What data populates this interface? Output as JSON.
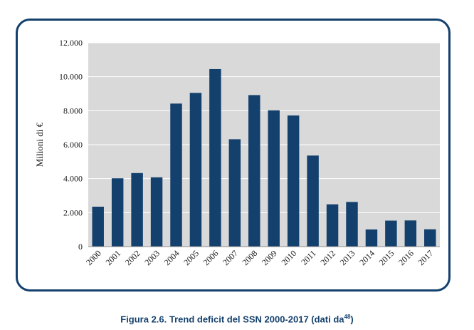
{
  "chart_data": {
    "type": "bar",
    "categories": [
      "2000",
      "2001",
      "2002",
      "2003",
      "2004",
      "2005",
      "2006",
      "2007",
      "2008",
      "2009",
      "2010",
      "2011",
      "2012",
      "2013",
      "2014",
      "2015",
      "2016",
      "2017"
    ],
    "values": [
      2350,
      4020,
      4330,
      4080,
      8420,
      9050,
      10450,
      6320,
      8920,
      8020,
      7720,
      5360,
      2490,
      2630,
      1010,
      1530,
      1540,
      1020
    ],
    "ylabel": "Milioni di €",
    "ylim": [
      0,
      12000
    ],
    "yticks": [
      0,
      2000,
      4000,
      6000,
      8000,
      10000,
      12000
    ],
    "ytick_labels": [
      "0",
      "2.000",
      "4.000",
      "6.000",
      "8.000",
      "10.000",
      "12.000"
    ],
    "grid": true,
    "colors": {
      "bar": "#14406d",
      "plot_bg": "#d9d9d9",
      "grid": "#ffffff",
      "frame": "#14406d"
    }
  },
  "caption": {
    "text": "Figura 2.6. Trend deficit del SSN 2000-2017 (dati da",
    "ref": "48",
    "close": ")"
  }
}
